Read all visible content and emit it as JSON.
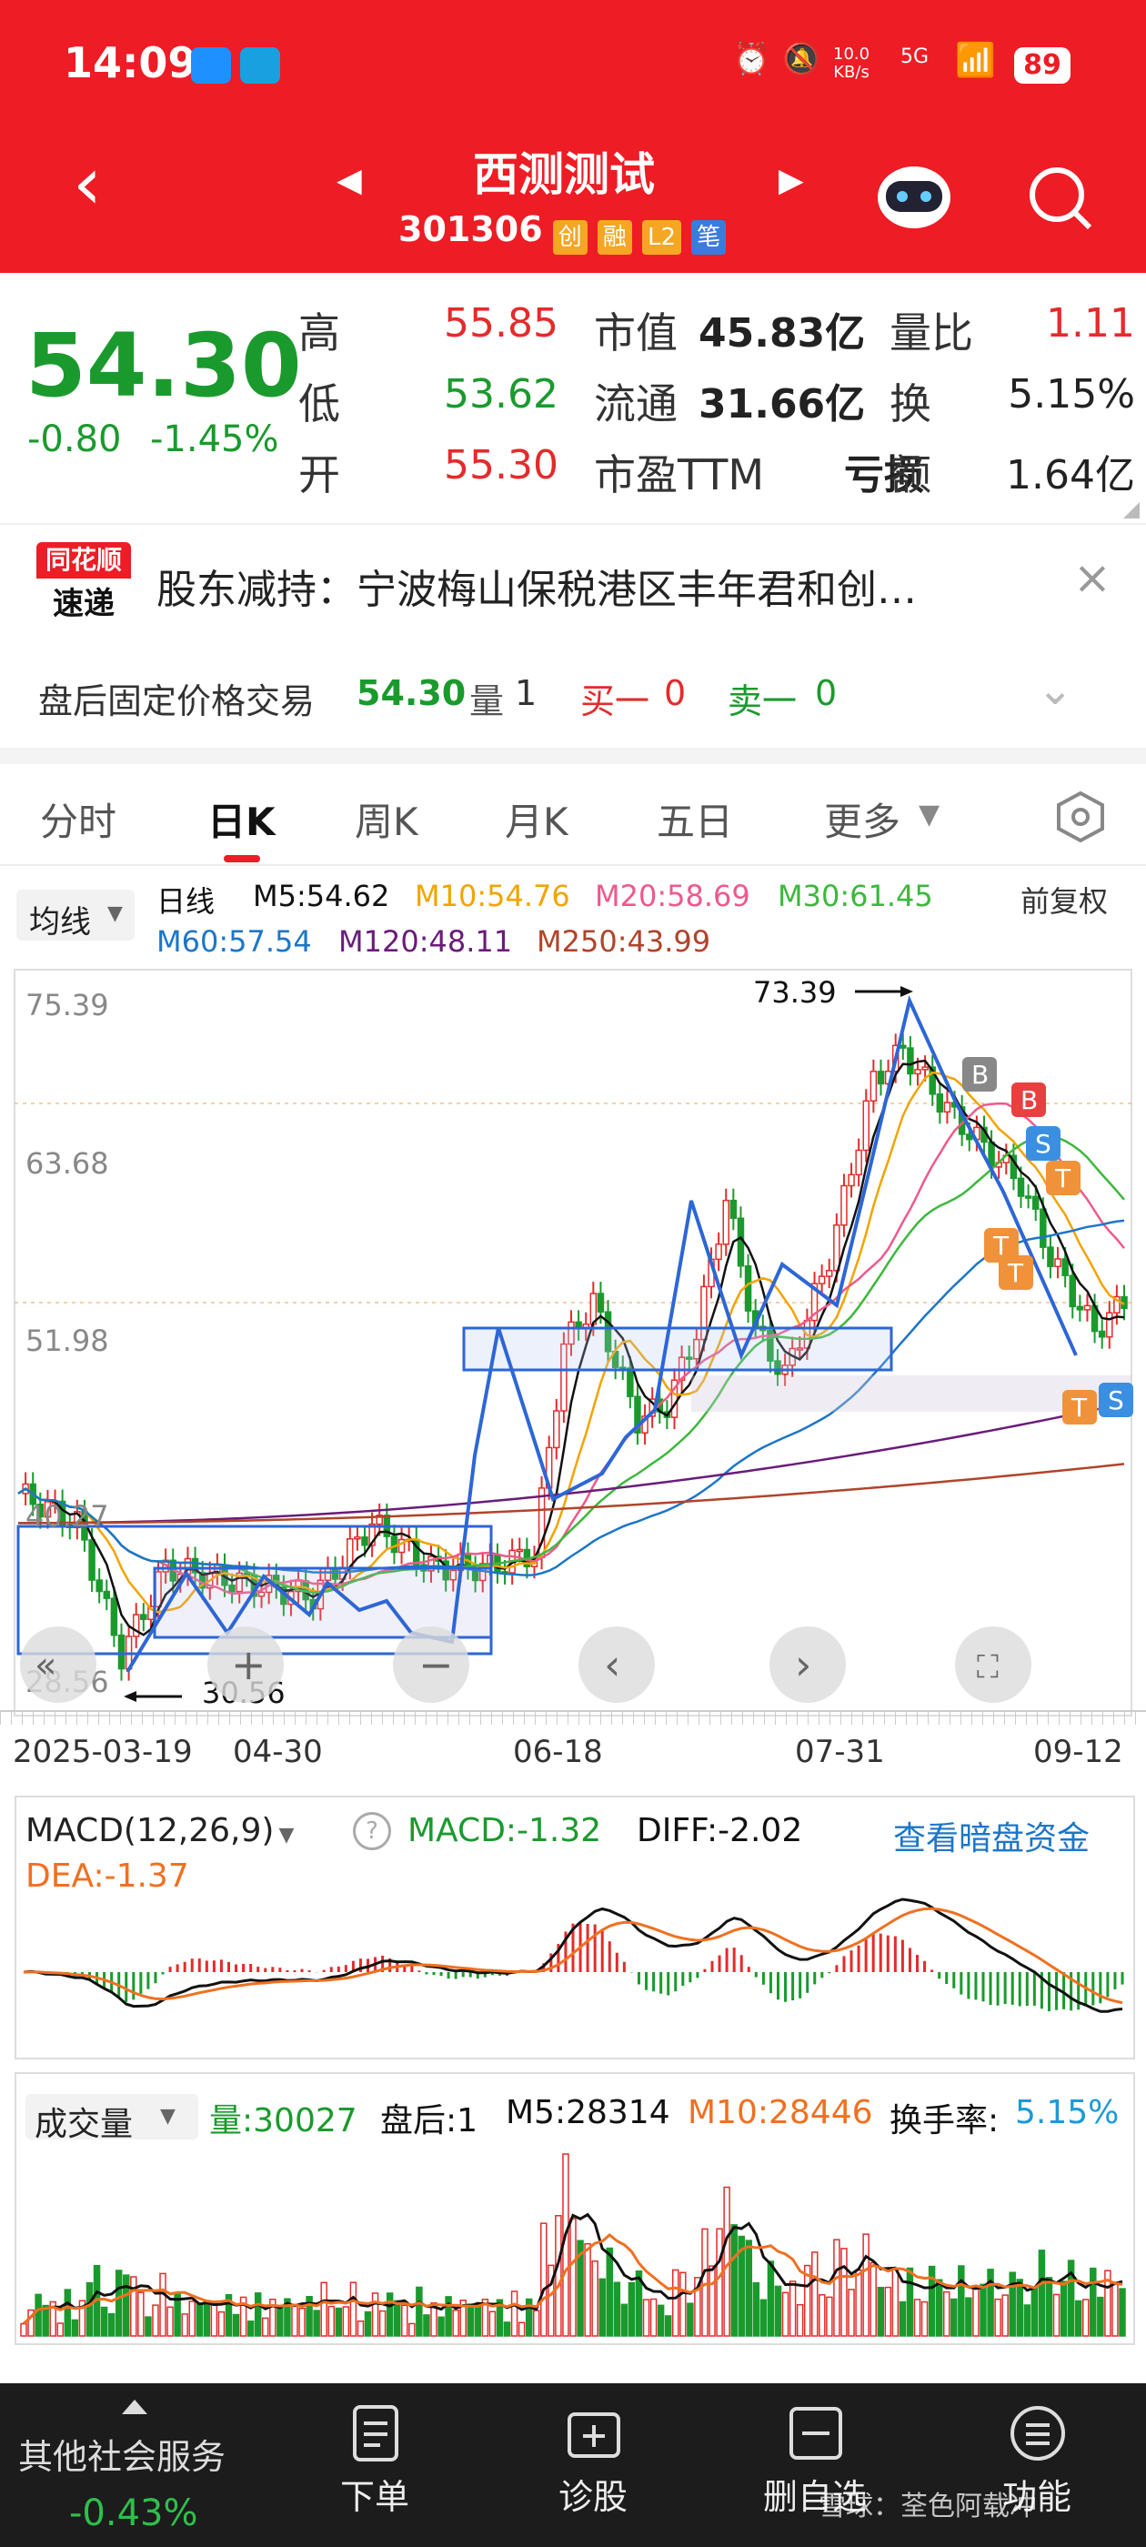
{
  "status": {
    "time": "14:09",
    "net_speed": "10.0\nKB/s",
    "net_speed_top": "10.0",
    "net_speed_bottom": "KB/s",
    "signal": "5G",
    "battery": "89"
  },
  "header": {
    "title": "西测测试",
    "code": "301306",
    "badges": [
      "创",
      "融",
      "L2",
      "笔"
    ]
  },
  "quote": {
    "price": "54.30",
    "change": "-0.80",
    "change_pct": "-1.45%",
    "rows": [
      {
        "l1": "高",
        "v1": "55.85",
        "l2": "市值",
        "v2": "45.83亿",
        "l3": "量比",
        "v3": "1.11"
      },
      {
        "l1": "低",
        "v1": "53.62",
        "l2": "流通",
        "v2": "31.66亿",
        "l3": "换",
        "v3": "5.15%"
      },
      {
        "l1": "开",
        "v1": "55.30",
        "l2": "市盈TTM",
        "v2": "亏损",
        "l3": "额",
        "v3": "1.64亿"
      }
    ]
  },
  "news": {
    "logo_top": "同花顺",
    "logo_bottom": "速递",
    "text": "股东减持：宁波梅山保税港区丰年君和创…"
  },
  "after_hours": {
    "label": "盘后固定价格交易",
    "price": "54.30",
    "vol_label": "量",
    "vol": "1",
    "buy_label": "买一",
    "buy": "0",
    "sell_label": "卖一",
    "sell": "0"
  },
  "tabs": [
    "分时",
    "日K",
    "周K",
    "月K",
    "五日",
    "更多"
  ],
  "kline": {
    "ma_select": "均线",
    "period": "日线",
    "adjust": "前复权",
    "ma": [
      {
        "label": "M5:54.62",
        "color": "#111111"
      },
      {
        "label": "M10:54.76",
        "color": "#f2a400"
      },
      {
        "label": "M20:58.69",
        "color": "#ee5a8a"
      },
      {
        "label": "M30:61.45",
        "color": "#3cb83c"
      },
      {
        "label": "M60:57.54",
        "color": "#1c76c8"
      },
      {
        "label": "M120:48.11",
        "color": "#6a1b7a"
      },
      {
        "label": "M250:43.99",
        "color": "#b0442a"
      }
    ],
    "price_axis": [
      "75.39",
      "63.68",
      "51.98",
      "40.27",
      "28.56"
    ],
    "annot_high": "73.39",
    "annot_low": "30.56",
    "dates": [
      "2025-03-19",
      "04-30",
      "06-18",
      "07-31",
      "09-12"
    ],
    "markers": [
      "B",
      "B",
      "S",
      "T",
      "T",
      "T",
      "T",
      "S"
    ]
  },
  "macd": {
    "select": "MACD(12,26,9)",
    "macd": "MACD:-1.32",
    "diff": "DIFF:-2.02",
    "dea": "DEA:-1.37",
    "link": "查看暗盘资金"
  },
  "volume": {
    "select": "成交量",
    "vol": "量:30027",
    "after": "盘后:1",
    "m5": "M5:28314",
    "m10": "M10:28446",
    "turnover_label": "换手率:",
    "turnover": "5.15%"
  },
  "bottom": {
    "sector": "其他社会服务",
    "sector_pct": "-0.43%",
    "items": [
      "下单",
      "诊股",
      "删自选",
      "功能"
    ],
    "watermark": "雪球：荃色阿载冲"
  },
  "colors": {
    "brand_red": "#ee1c25",
    "up": "#e42b2b",
    "down": "#1a9a2d",
    "link": "#1c76c8"
  }
}
